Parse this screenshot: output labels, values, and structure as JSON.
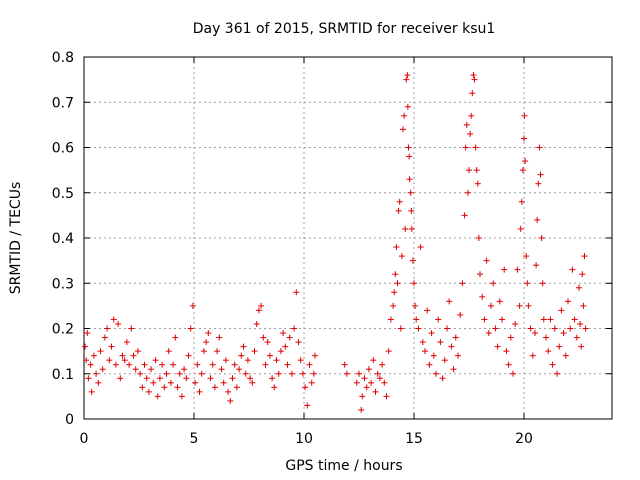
{
  "chart_data": {
    "type": "scatter",
    "title": "Day 361 of 2015, SRMTID for receiver ksu1",
    "xlabel": "GPS time / hours",
    "ylabel": "SRMTID / TECUs",
    "xlim": [
      0,
      24
    ],
    "ylim": [
      0,
      0.8
    ],
    "xticks": [
      "0",
      "5",
      "10",
      "15",
      "20"
    ],
    "yticks": [
      "0",
      "0.1",
      "0.2",
      "0.3",
      "0.4",
      "0.5",
      "0.6",
      "0.7",
      "0.8"
    ],
    "grid": true,
    "marker": "+",
    "color": "#e00000",
    "series": [
      {
        "name": "ksu1",
        "points": [
          [
            0.05,
            0.16
          ],
          [
            0.1,
            0.13
          ],
          [
            0.15,
            0.19
          ],
          [
            0.2,
            0.09
          ],
          [
            0.3,
            0.12
          ],
          [
            0.35,
            0.06
          ],
          [
            0.45,
            0.14
          ],
          [
            0.55,
            0.1
          ],
          [
            0.65,
            0.08
          ],
          [
            0.75,
            0.15
          ],
          [
            0.85,
            0.11
          ],
          [
            0.95,
            0.18
          ],
          [
            1.05,
            0.2
          ],
          [
            1.15,
            0.13
          ],
          [
            1.25,
            0.16
          ],
          [
            1.35,
            0.22
          ],
          [
            1.45,
            0.12
          ],
          [
            1.55,
            0.21
          ],
          [
            1.65,
            0.09
          ],
          [
            1.75,
            0.14
          ],
          [
            1.85,
            0.13
          ],
          [
            1.95,
            0.17
          ],
          [
            2.05,
            0.12
          ],
          [
            2.15,
            0.2
          ],
          [
            2.25,
            0.14
          ],
          [
            2.35,
            0.11
          ],
          [
            2.45,
            0.15
          ],
          [
            2.55,
            0.1
          ],
          [
            2.65,
            0.07
          ],
          [
            2.75,
            0.12
          ],
          [
            2.85,
            0.09
          ],
          [
            2.95,
            0.06
          ],
          [
            3.05,
            0.11
          ],
          [
            3.15,
            0.08
          ],
          [
            3.25,
            0.13
          ],
          [
            3.35,
            0.05
          ],
          [
            3.45,
            0.09
          ],
          [
            3.55,
            0.12
          ],
          [
            3.65,
            0.07
          ],
          [
            3.75,
            0.1
          ],
          [
            3.85,
            0.15
          ],
          [
            3.95,
            0.08
          ],
          [
            4.05,
            0.12
          ],
          [
            4.15,
            0.18
          ],
          [
            4.25,
            0.07
          ],
          [
            4.35,
            0.1
          ],
          [
            4.45,
            0.05
          ],
          [
            4.55,
            0.11
          ],
          [
            4.65,
            0.09
          ],
          [
            4.75,
            0.14
          ],
          [
            4.85,
            0.2
          ],
          [
            4.95,
            0.25
          ],
          [
            5.05,
            0.08
          ],
          [
            5.15,
            0.12
          ],
          [
            5.25,
            0.06
          ],
          [
            5.35,
            0.1
          ],
          [
            5.45,
            0.15
          ],
          [
            5.55,
            0.17
          ],
          [
            5.65,
            0.19
          ],
          [
            5.75,
            0.09
          ],
          [
            5.85,
            0.12
          ],
          [
            5.95,
            0.07
          ],
          [
            6.05,
            0.15
          ],
          [
            6.15,
            0.18
          ],
          [
            6.25,
            0.11
          ],
          [
            6.35,
            0.08
          ],
          [
            6.45,
            0.13
          ],
          [
            6.55,
            0.06
          ],
          [
            6.65,
            0.04
          ],
          [
            6.75,
            0.09
          ],
          [
            6.85,
            0.12
          ],
          [
            6.95,
            0.07
          ],
          [
            7.05,
            0.11
          ],
          [
            7.15,
            0.14
          ],
          [
            7.25,
            0.16
          ],
          [
            7.35,
            0.1
          ],
          [
            7.45,
            0.13
          ],
          [
            7.55,
            0.09
          ],
          [
            7.65,
            0.08
          ],
          [
            7.75,
            0.15
          ],
          [
            7.85,
            0.21
          ],
          [
            7.95,
            0.24
          ],
          [
            8.05,
            0.25
          ],
          [
            8.15,
            0.18
          ],
          [
            8.25,
            0.12
          ],
          [
            8.35,
            0.17
          ],
          [
            8.45,
            0.14
          ],
          [
            8.55,
            0.09
          ],
          [
            8.65,
            0.07
          ],
          [
            8.75,
            0.13
          ],
          [
            8.85,
            0.1
          ],
          [
            8.95,
            0.15
          ],
          [
            9.05,
            0.19
          ],
          [
            9.15,
            0.16
          ],
          [
            9.25,
            0.12
          ],
          [
            9.35,
            0.18
          ],
          [
            9.45,
            0.1
          ],
          [
            9.55,
            0.2
          ],
          [
            9.65,
            0.28
          ],
          [
            9.75,
            0.17
          ],
          [
            9.85,
            0.13
          ],
          [
            9.95,
            0.1
          ],
          [
            10.05,
            0.07
          ],
          [
            10.15,
            0.03
          ],
          [
            10.25,
            0.12
          ],
          [
            10.35,
            0.08
          ],
          [
            10.45,
            0.1
          ],
          [
            10.5,
            0.14
          ],
          [
            11.85,
            0.12
          ],
          [
            11.95,
            0.1
          ],
          [
            12.4,
            0.08
          ],
          [
            12.5,
            0.1
          ],
          [
            12.6,
            0.02
          ],
          [
            12.65,
            0.05
          ],
          [
            12.75,
            0.09
          ],
          [
            12.85,
            0.07
          ],
          [
            12.95,
            0.11
          ],
          [
            13.05,
            0.08
          ],
          [
            13.15,
            0.13
          ],
          [
            13.25,
            0.06
          ],
          [
            13.35,
            0.1
          ],
          [
            13.45,
            0.09
          ],
          [
            13.55,
            0.12
          ],
          [
            13.65,
            0.08
          ],
          [
            13.75,
            0.05
          ],
          [
            13.85,
            0.15
          ],
          [
            13.95,
            0.22
          ],
          [
            14.05,
            0.25
          ],
          [
            14.1,
            0.28
          ],
          [
            14.15,
            0.32
          ],
          [
            14.2,
            0.38
          ],
          [
            14.25,
            0.3
          ],
          [
            14.3,
            0.46
          ],
          [
            14.35,
            0.48
          ],
          [
            14.4,
            0.2
          ],
          [
            14.45,
            0.36
          ],
          [
            14.5,
            0.64
          ],
          [
            14.55,
            0.67
          ],
          [
            14.6,
            0.42
          ],
          [
            14.65,
            0.75
          ],
          [
            14.7,
            0.76
          ],
          [
            14.72,
            0.69
          ],
          [
            14.75,
            0.6
          ],
          [
            14.78,
            0.58
          ],
          [
            14.8,
            0.53
          ],
          [
            14.85,
            0.5
          ],
          [
            14.88,
            0.46
          ],
          [
            14.9,
            0.42
          ],
          [
            14.95,
            0.35
          ],
          [
            15.0,
            0.3
          ],
          [
            15.05,
            0.25
          ],
          [
            15.1,
            0.22
          ],
          [
            15.2,
            0.2
          ],
          [
            15.3,
            0.38
          ],
          [
            15.4,
            0.17
          ],
          [
            15.5,
            0.15
          ],
          [
            15.6,
            0.24
          ],
          [
            15.7,
            0.12
          ],
          [
            15.8,
            0.19
          ],
          [
            15.9,
            0.14
          ],
          [
            16.0,
            0.1
          ],
          [
            16.1,
            0.22
          ],
          [
            16.2,
            0.17
          ],
          [
            16.3,
            0.09
          ],
          [
            16.4,
            0.13
          ],
          [
            16.5,
            0.2
          ],
          [
            16.6,
            0.26
          ],
          [
            16.7,
            0.16
          ],
          [
            16.8,
            0.11
          ],
          [
            16.9,
            0.18
          ],
          [
            17.0,
            0.14
          ],
          [
            17.1,
            0.23
          ],
          [
            17.2,
            0.3
          ],
          [
            17.3,
            0.45
          ],
          [
            17.35,
            0.6
          ],
          [
            17.4,
            0.65
          ],
          [
            17.45,
            0.5
          ],
          [
            17.5,
            0.55
          ],
          [
            17.55,
            0.63
          ],
          [
            17.6,
            0.67
          ],
          [
            17.65,
            0.72
          ],
          [
            17.7,
            0.76
          ],
          [
            17.75,
            0.75
          ],
          [
            17.8,
            0.6
          ],
          [
            17.85,
            0.55
          ],
          [
            17.9,
            0.52
          ],
          [
            17.95,
            0.4
          ],
          [
            18.0,
            0.32
          ],
          [
            18.1,
            0.27
          ],
          [
            18.2,
            0.22
          ],
          [
            18.3,
            0.35
          ],
          [
            18.4,
            0.19
          ],
          [
            18.5,
            0.25
          ],
          [
            18.6,
            0.3
          ],
          [
            18.7,
            0.2
          ],
          [
            18.8,
            0.16
          ],
          [
            18.9,
            0.26
          ],
          [
            19.0,
            0.22
          ],
          [
            19.1,
            0.33
          ],
          [
            19.2,
            0.15
          ],
          [
            19.3,
            0.12
          ],
          [
            19.4,
            0.18
          ],
          [
            19.5,
            0.1
          ],
          [
            19.6,
            0.21
          ],
          [
            19.7,
            0.33
          ],
          [
            19.8,
            0.25
          ],
          [
            19.85,
            0.42
          ],
          [
            19.9,
            0.48
          ],
          [
            19.95,
            0.55
          ],
          [
            20.0,
            0.62
          ],
          [
            20.02,
            0.67
          ],
          [
            20.05,
            0.57
          ],
          [
            20.1,
            0.36
          ],
          [
            20.15,
            0.3
          ],
          [
            20.2,
            0.25
          ],
          [
            20.3,
            0.2
          ],
          [
            20.4,
            0.14
          ],
          [
            20.5,
            0.19
          ],
          [
            20.55,
            0.34
          ],
          [
            20.6,
            0.44
          ],
          [
            20.65,
            0.52
          ],
          [
            20.7,
            0.6
          ],
          [
            20.75,
            0.54
          ],
          [
            20.8,
            0.4
          ],
          [
            20.85,
            0.3
          ],
          [
            20.9,
            0.22
          ],
          [
            21.0,
            0.18
          ],
          [
            21.1,
            0.15
          ],
          [
            21.2,
            0.22
          ],
          [
            21.3,
            0.12
          ],
          [
            21.4,
            0.2
          ],
          [
            21.5,
            0.1
          ],
          [
            21.6,
            0.16
          ],
          [
            21.7,
            0.24
          ],
          [
            21.8,
            0.19
          ],
          [
            21.9,
            0.14
          ],
          [
            22.0,
            0.26
          ],
          [
            22.1,
            0.2
          ],
          [
            22.2,
            0.33
          ],
          [
            22.3,
            0.22
          ],
          [
            22.4,
            0.18
          ],
          [
            22.5,
            0.29
          ],
          [
            22.55,
            0.21
          ],
          [
            22.6,
            0.16
          ],
          [
            22.65,
            0.32
          ],
          [
            22.7,
            0.25
          ],
          [
            22.75,
            0.36
          ],
          [
            22.8,
            0.2
          ]
        ]
      }
    ]
  }
}
